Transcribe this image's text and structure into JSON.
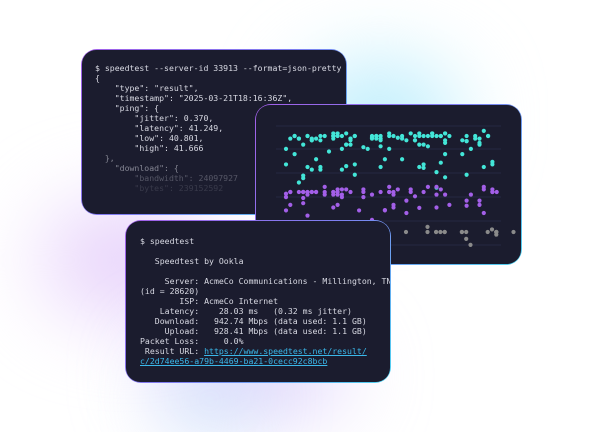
{
  "colors": {
    "card_bg": "#1b1c2e",
    "accent_purple": "#a35fe8",
    "accent_cyan": "#4fd3f0",
    "dot_cyan": "#43e6d8",
    "dot_purple": "#a35fe8",
    "dot_gray": "#8a8a8a",
    "link": "#3ab8ea"
  },
  "json_terminal": {
    "command": "$ speedtest --server-id 33913 --format=json-pretty",
    "lines": [
      "{",
      "    \"type\": \"result\",",
      "    \"timestamp\": \"2025-03-21T18:16:36Z\",",
      "    \"ping\": {",
      "        \"jitter\": 0.370,",
      "        \"latency\": 41.249,",
      "        \"low\": 40.801,",
      "        \"high\": 41.666",
      "  },",
      "    \"download\": {",
      "        \"bandwidth\": 24097927",
      "        \"bytes\": 239152592"
    ]
  },
  "text_terminal": {
    "command": "$ speedtest",
    "title": "   Speedtest by Ookla",
    "lines": [
      "     Server: AcmeCo Communications - Millington, TN",
      "(id = 28620)",
      "        ISP: AcmeCo Internet",
      "    Latency:    28.03 ms   (0.32 ms jitter)",
      "   Download:   942.74 Mbps (data used: 1.1 GB)",
      "     Upload:   928.41 Mbps (data used: 1.1 GB)",
      "Packet Loss:     0.0%"
    ],
    "result_label": " Result URL: ",
    "result_url_1": "https://www.speedtest.net/result/",
    "result_url_2": "c/2d74ee56-a79b-4469-ba21-0cecc92c8bcb"
  }
}
